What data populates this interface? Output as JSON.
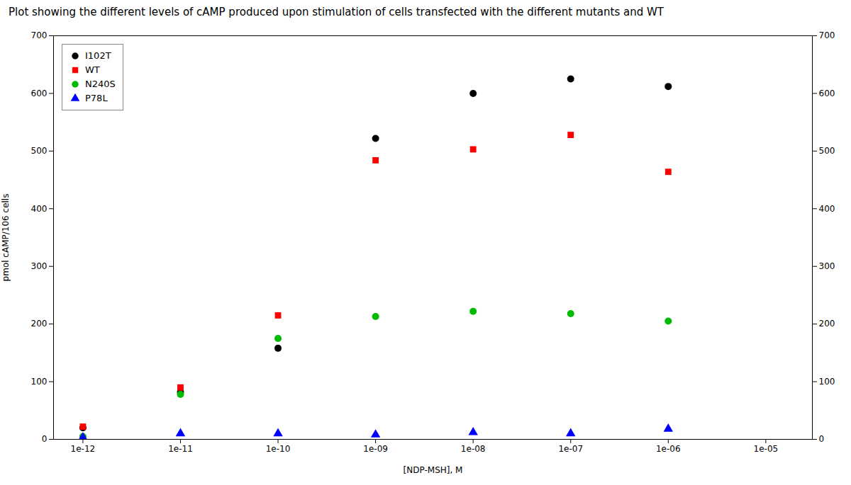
{
  "chart_data": {
    "type": "scatter",
    "title": "Plot showing the different levels of cAMP produced upon stimulation of cells transfected with the different mutants and WT",
    "xlabel": "[NDP-MSH], M",
    "ylabel": "pmol cAMP/106 cells",
    "log": "x",
    "xlim": [
      5e-13,
      3e-05
    ],
    "xticks": [
      {
        "value": 1e-12,
        "label": "1e-12"
      },
      {
        "value": 1e-11,
        "label": "1e-11"
      },
      {
        "value": 1e-10,
        "label": "1e-10"
      },
      {
        "value": 1e-09,
        "label": "1e-09"
      },
      {
        "value": 1e-08,
        "label": "1e-08"
      },
      {
        "value": 1e-07,
        "label": "1e-07"
      },
      {
        "value": 1e-06,
        "label": "1e-06"
      },
      {
        "value": 1e-05,
        "label": "1e-05"
      }
    ],
    "ylim": [
      0,
      700
    ],
    "yticks": [
      0,
      100,
      200,
      300,
      400,
      500,
      600,
      700
    ],
    "grid": false,
    "legend": "upper left",
    "series": [
      {
        "name": "I102T",
        "color": "#000000",
        "marker": "circle",
        "x": [
          1e-12,
          1e-11,
          1e-10,
          1e-09,
          1e-08,
          1e-07,
          1e-06
        ],
        "values": [
          20,
          82,
          158,
          522,
          600,
          625,
          612
        ]
      },
      {
        "name": "WT",
        "color": "#ff0000",
        "marker": "square",
        "x": [
          1e-12,
          1e-11,
          1e-10,
          1e-09,
          1e-08,
          1e-07,
          1e-06
        ],
        "values": [
          22,
          90,
          215,
          484,
          503,
          528,
          464
        ]
      },
      {
        "name": "N240S",
        "color": "#00bb00",
        "marker": "circle",
        "x": [
          1e-12,
          1e-11,
          1e-10,
          1e-09,
          1e-08,
          1e-07,
          1e-06
        ],
        "values": [
          5,
          78,
          175,
          213,
          222,
          218,
          205
        ]
      },
      {
        "name": "P78L",
        "color": "#0000ff",
        "marker": "triangle",
        "x": [
          1e-12,
          1e-11,
          1e-10,
          1e-09,
          1e-08,
          1e-07,
          1e-06
        ],
        "values": [
          3,
          10,
          10,
          8,
          12,
          10,
          18
        ]
      }
    ]
  }
}
